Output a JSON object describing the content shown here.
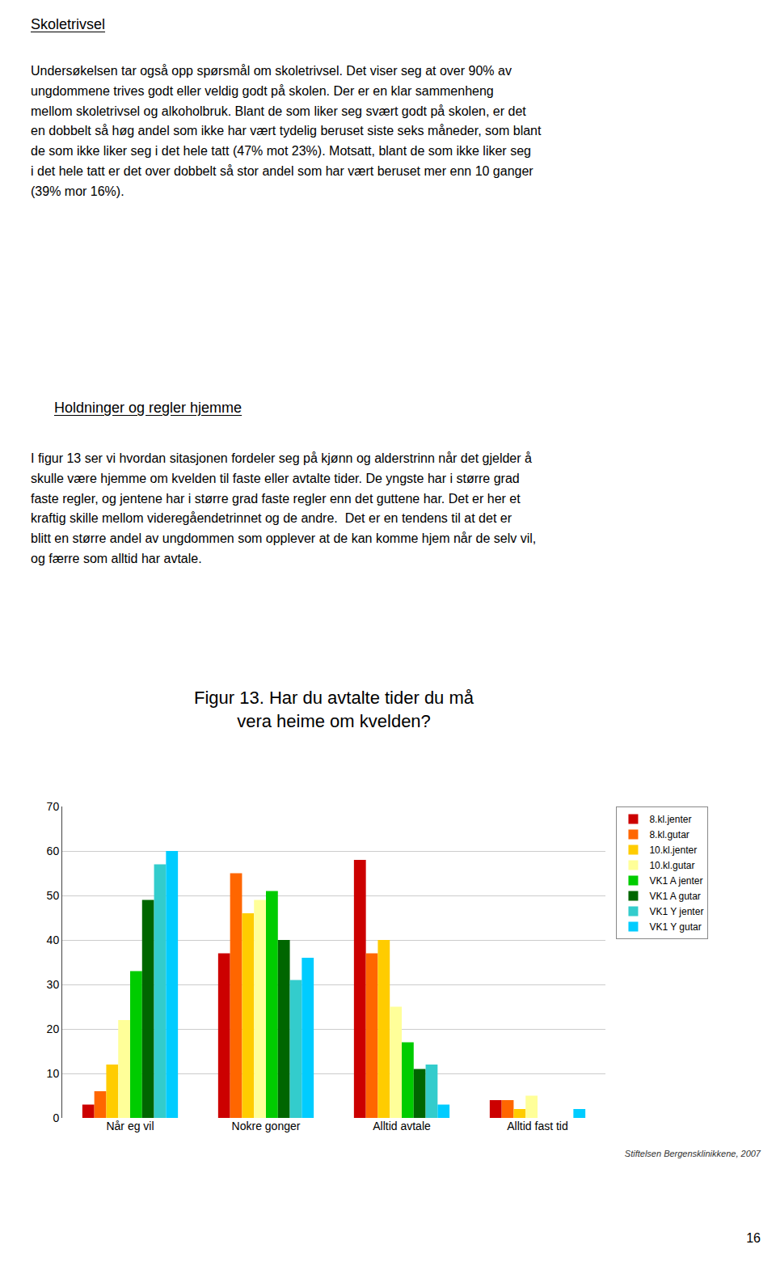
{
  "chart_data": {
    "type": "bar",
    "title": "Figur 13. Har du avtalte tider du må\nvera heime om kvelden?",
    "categories": [
      "Når eg vil",
      "Nokre gonger",
      "Alltid avtale",
      "Alltid fast tid"
    ],
    "series": [
      {
        "name": "8.kl.jenter",
        "color": "#CC0000",
        "values": [
          3,
          37,
          58,
          4
        ]
      },
      {
        "name": "8.kl.gutar",
        "color": "#FF6600",
        "values": [
          6,
          55,
          37,
          4
        ]
      },
      {
        "name": "10.kl.jenter",
        "color": "#FFCC00",
        "values": [
          12,
          46,
          40,
          2
        ]
      },
      {
        "name": "10.kl.gutar",
        "color": "#FFFF99",
        "values": [
          22,
          49,
          25,
          5
        ]
      },
      {
        "name": "VK1 A jenter",
        "color": "#00CC00",
        "values": [
          33,
          51,
          17,
          0
        ]
      },
      {
        "name": "VK1 A gutar",
        "color": "#006600",
        "values": [
          49,
          40,
          11,
          0
        ]
      },
      {
        "name": "VK1 Y jenter",
        "color": "#33CCCC",
        "values": [
          57,
          31,
          12,
          0
        ]
      },
      {
        "name": "VK1 Y gutar",
        "color": "#00CCFF",
        "values": [
          60,
          36,
          3,
          2
        ]
      }
    ],
    "ylim": [
      0,
      70
    ],
    "yticks": [
      0,
      10,
      20,
      30,
      40,
      50,
      60,
      70
    ],
    "grid": true,
    "legend": "right",
    "annotations": [
      "Skoletrivsel",
      "Undersøkelsen tar også opp spørsmål om skoletrivsel. Det viser seg at over 90% av\nungdommene trives godt eller veldig godt på skolen. Der er en klar sammenheng\nmellom skoletrivsel og alkoholbruk. Blant de som liker seg svært godt på skolen, er det\nen dobbelt så høg andel som ikke har vært tydelig beruset siste seks måneder, som blant\nde som ikke liker seg i det hele tatt (47% mot 23%). Motsatt, blant de som ikke liker seg\ni det hele tatt er det over dobbelt så stor andel som har vært beruset mer enn 10 ganger\n(39% mor 16%).",
      "Holdninger og regler hjemme",
      "I figur 13 ser vi hvordan sitasjonen fordeler seg på kjønn og alderstrinn når det gjelder å\nskulle være hjemme om kvelden til faste eller avtalte tider. De yngste har i større grad\nfaste regler, og jentene har i større grad faste regler enn det guttene har. Det er her et\nkraftig skille mellom videregåendetrinnet og de andre.  Det er en tendens til at det er\nblitt en større andel av ungdommen som opplever at de kan komme hjem når de selv vil,\nog færre som alltid har avtale.",
      "Stiftelsen Bergensklinikkene, 2007",
      "16"
    ]
  }
}
